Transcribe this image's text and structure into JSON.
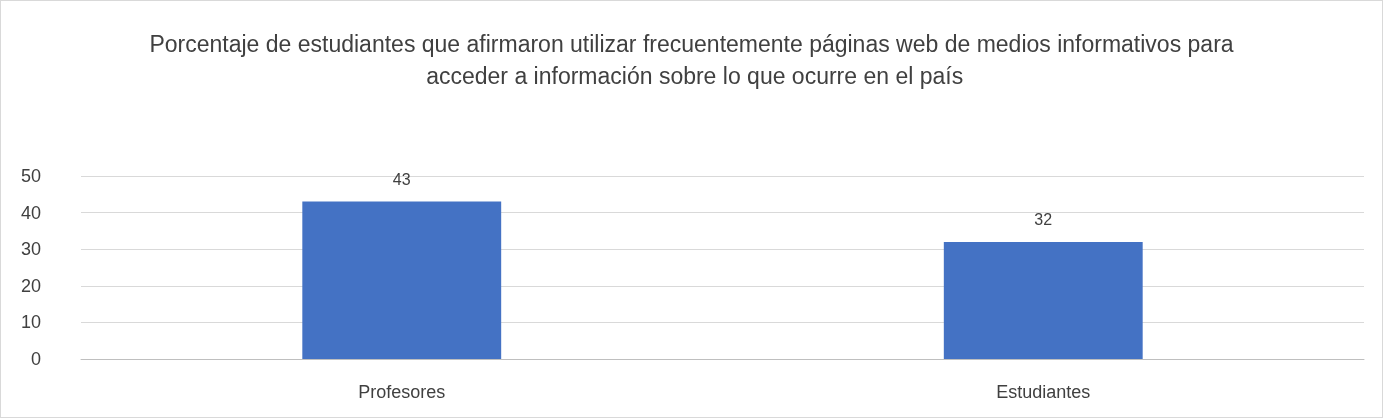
{
  "chart_data": {
    "type": "bar",
    "title": "Porcentaje de estudiantes que afirmaron utilizar frecuentemente páginas web de medios informativos para acceder a información sobre lo que ocurre en el país",
    "categories": [
      "Profesores",
      "Estudiantes"
    ],
    "values": [
      43,
      32
    ],
    "color": "#4472c4",
    "ylim": [
      0,
      50
    ],
    "yticks": [
      0,
      10,
      20,
      30,
      40,
      50
    ],
    "grid": "y",
    "data_labels": true
  }
}
